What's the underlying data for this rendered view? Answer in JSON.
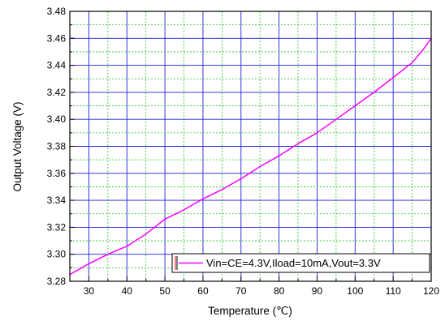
{
  "chart_data": {
    "type": "line",
    "title": "",
    "xlabel": "Temperature (℃)",
    "ylabel": "Output Voltage (V)",
    "xlim": [
      25,
      120
    ],
    "ylim": [
      3.28,
      3.48
    ],
    "x_ticks": [
      "30",
      "40",
      "50",
      "60",
      "70",
      "80",
      "90",
      "100",
      "110",
      "120"
    ],
    "y_ticks": [
      "3.28",
      "3.30",
      "3.32",
      "3.34",
      "3.36",
      "3.38",
      "3.40",
      "3.42",
      "3.44",
      "3.46",
      "3.48"
    ],
    "grid": true,
    "legend_position": "bottom-right",
    "series": [
      {
        "name": "Vin=CE=4.3V,Iload=10mA,Vout=3.3V",
        "color": "#ff00ff",
        "x": [
          25,
          30,
          35,
          40,
          45,
          50,
          55,
          60,
          65,
          70,
          75,
          80,
          85,
          90,
          95,
          100,
          105,
          110,
          115,
          118,
          120
        ],
        "y": [
          3.285,
          3.293,
          3.3,
          3.306,
          3.315,
          3.326,
          3.333,
          3.341,
          3.348,
          3.356,
          3.365,
          3.373,
          3.382,
          3.39,
          3.4,
          3.41,
          3.42,
          3.431,
          3.442,
          3.452,
          3.46
        ]
      }
    ]
  }
}
